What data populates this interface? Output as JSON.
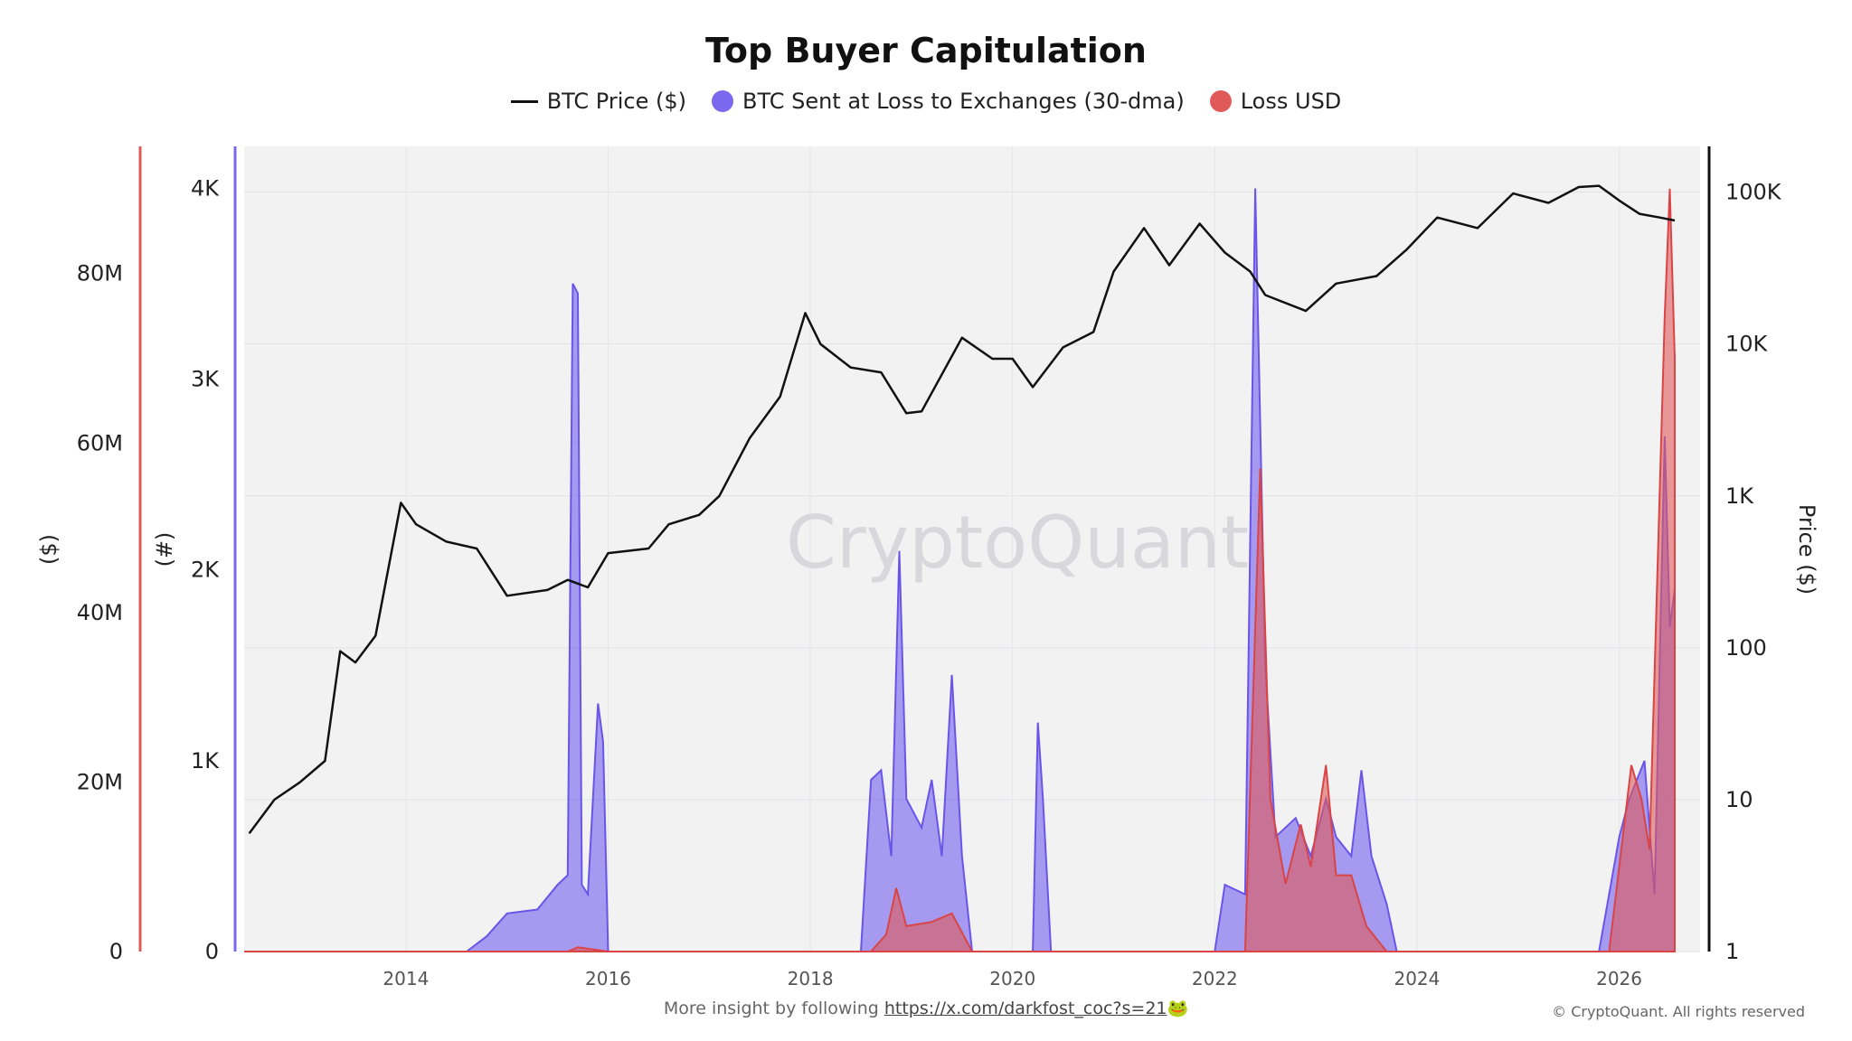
{
  "chart_data": {
    "type": "line",
    "title": "Top Buyer Capitulation",
    "watermark": "CryptoQuant",
    "legend": [
      {
        "name": "BTC Price ($)",
        "marker": "line",
        "color": "#111111"
      },
      {
        "name": "BTC Sent at Loss to Exchanges (30-dma)",
        "marker": "dot",
        "color": "#7b68ee"
      },
      {
        "name": "Loss USD",
        "marker": "dot",
        "color": "#e05a5a"
      }
    ],
    "legend_position": "top-center",
    "grid": true,
    "x_axis": {
      "ticks": [
        "2014",
        "2016",
        "2018",
        "2020",
        "2022",
        "2024",
        "2026"
      ],
      "range": [
        2012.4,
        2026.8
      ]
    },
    "y_axes": [
      {
        "id": "loss_usd",
        "side": "left-outer",
        "label": "($)",
        "color": "#e05a5a",
        "range": [
          0,
          95000000
        ],
        "ticks": [
          {
            "v": 0,
            "t": "0"
          },
          {
            "v": 20000000,
            "t": "20M"
          },
          {
            "v": 40000000,
            "t": "40M"
          },
          {
            "v": 60000000,
            "t": "60M"
          },
          {
            "v": 80000000,
            "t": "80M"
          }
        ]
      },
      {
        "id": "btc_sent",
        "side": "left-inner",
        "label": "(#)",
        "color": "#7b68ee",
        "range": [
          0,
          4220
        ],
        "ticks": [
          {
            "v": 0,
            "t": "0"
          },
          {
            "v": 1000,
            "t": "1K"
          },
          {
            "v": 2000,
            "t": "2K"
          },
          {
            "v": 3000,
            "t": "3K"
          },
          {
            "v": 4000,
            "t": "4K"
          }
        ]
      },
      {
        "id": "price",
        "side": "right",
        "label": "Price ($)",
        "color": "#111111",
        "scale": "log",
        "range": [
          1,
          200000
        ],
        "ticks": [
          {
            "v": 1,
            "t": "1"
          },
          {
            "v": 10,
            "t": "10"
          },
          {
            "v": 100,
            "t": "100"
          },
          {
            "v": 1000,
            "t": "1K"
          },
          {
            "v": 10000,
            "t": "10K"
          },
          {
            "v": 100000,
            "t": "100K"
          }
        ]
      }
    ],
    "series": [
      {
        "name": "BTC Price ($)",
        "axis": "price",
        "type": "line",
        "color": "#111111",
        "points": [
          [
            2012.45,
            6
          ],
          [
            2012.7,
            10
          ],
          [
            2012.95,
            13
          ],
          [
            2013.2,
            18
          ],
          [
            2013.35,
            95
          ],
          [
            2013.5,
            80
          ],
          [
            2013.7,
            120
          ],
          [
            2013.95,
            900
          ],
          [
            2014.1,
            650
          ],
          [
            2014.4,
            500
          ],
          [
            2014.7,
            450
          ],
          [
            2015.0,
            220
          ],
          [
            2015.4,
            240
          ],
          [
            2015.6,
            280
          ],
          [
            2015.8,
            250
          ],
          [
            2016.0,
            420
          ],
          [
            2016.4,
            450
          ],
          [
            2016.6,
            650
          ],
          [
            2016.9,
            750
          ],
          [
            2017.1,
            1000
          ],
          [
            2017.4,
            2400
          ],
          [
            2017.7,
            4500
          ],
          [
            2017.95,
            16000
          ],
          [
            2018.1,
            10000
          ],
          [
            2018.4,
            7000
          ],
          [
            2018.7,
            6500
          ],
          [
            2018.95,
            3500
          ],
          [
            2019.1,
            3600
          ],
          [
            2019.5,
            11000
          ],
          [
            2019.8,
            8000
          ],
          [
            2020.0,
            8000
          ],
          [
            2020.2,
            5200
          ],
          [
            2020.5,
            9500
          ],
          [
            2020.8,
            12000
          ],
          [
            2021.0,
            30000
          ],
          [
            2021.3,
            58000
          ],
          [
            2021.55,
            33000
          ],
          [
            2021.85,
            62000
          ],
          [
            2022.1,
            40000
          ],
          [
            2022.35,
            30000
          ],
          [
            2022.5,
            21000
          ],
          [
            2022.9,
            16500
          ],
          [
            2023.2,
            25000
          ],
          [
            2023.6,
            28000
          ],
          [
            2023.9,
            42000
          ],
          [
            2024.2,
            68000
          ],
          [
            2024.6,
            58000
          ],
          [
            2024.95,
            98000
          ],
          [
            2025.3,
            85000
          ],
          [
            2025.6,
            108000
          ],
          [
            2025.8,
            110000
          ],
          [
            2026.0,
            88000
          ],
          [
            2026.2,
            72000
          ],
          [
            2026.4,
            68000
          ],
          [
            2026.55,
            65000
          ]
        ]
      },
      {
        "name": "BTC Sent at Loss to Exchanges (30-dma)",
        "axis": "btc_sent",
        "type": "area",
        "color": "#7b68ee",
        "points": [
          [
            2012.4,
            0
          ],
          [
            2014.6,
            0
          ],
          [
            2014.8,
            80
          ],
          [
            2015.0,
            200
          ],
          [
            2015.3,
            220
          ],
          [
            2015.5,
            350
          ],
          [
            2015.6,
            400
          ],
          [
            2015.65,
            3500
          ],
          [
            2015.7,
            3450
          ],
          [
            2015.74,
            350
          ],
          [
            2015.8,
            300
          ],
          [
            2015.9,
            1300
          ],
          [
            2015.95,
            1100
          ],
          [
            2016.0,
            0
          ],
          [
            2018.5,
            0
          ],
          [
            2018.6,
            900
          ],
          [
            2018.7,
            950
          ],
          [
            2018.8,
            500
          ],
          [
            2018.88,
            2100
          ],
          [
            2018.95,
            800
          ],
          [
            2019.1,
            650
          ],
          [
            2019.2,
            900
          ],
          [
            2019.3,
            500
          ],
          [
            2019.4,
            1450
          ],
          [
            2019.5,
            500
          ],
          [
            2019.6,
            0
          ],
          [
            2020.2,
            0
          ],
          [
            2020.25,
            1200
          ],
          [
            2020.3,
            800
          ],
          [
            2020.38,
            0
          ],
          [
            2022.0,
            0
          ],
          [
            2022.1,
            350
          ],
          [
            2022.3,
            300
          ],
          [
            2022.4,
            4000
          ],
          [
            2022.5,
            1500
          ],
          [
            2022.6,
            600
          ],
          [
            2022.8,
            700
          ],
          [
            2022.95,
            500
          ],
          [
            2023.1,
            800
          ],
          [
            2023.2,
            600
          ],
          [
            2023.35,
            500
          ],
          [
            2023.45,
            950
          ],
          [
            2023.55,
            500
          ],
          [
            2023.7,
            250
          ],
          [
            2023.8,
            0
          ],
          [
            2025.8,
            0
          ],
          [
            2026.0,
            600
          ],
          [
            2026.1,
            800
          ],
          [
            2026.25,
            1000
          ],
          [
            2026.35,
            300
          ],
          [
            2026.45,
            2700
          ],
          [
            2026.5,
            1700
          ],
          [
            2026.55,
            1900
          ]
        ]
      },
      {
        "name": "Loss USD",
        "axis": "loss_usd",
        "type": "area",
        "color": "#e05a5a",
        "points": [
          [
            2012.4,
            0
          ],
          [
            2015.6,
            0
          ],
          [
            2015.7,
            500000
          ],
          [
            2016.0,
            0
          ],
          [
            2018.6,
            0
          ],
          [
            2018.75,
            2000000
          ],
          [
            2018.85,
            7500000
          ],
          [
            2018.95,
            3000000
          ],
          [
            2019.2,
            3500000
          ],
          [
            2019.4,
            4500000
          ],
          [
            2019.6,
            0
          ],
          [
            2022.3,
            0
          ],
          [
            2022.45,
            57000000
          ],
          [
            2022.55,
            18000000
          ],
          [
            2022.7,
            8000000
          ],
          [
            2022.85,
            15000000
          ],
          [
            2022.95,
            10000000
          ],
          [
            2023.1,
            22000000
          ],
          [
            2023.2,
            9000000
          ],
          [
            2023.35,
            9000000
          ],
          [
            2023.5,
            3000000
          ],
          [
            2023.7,
            0
          ],
          [
            2025.9,
            0
          ],
          [
            2026.0,
            10000000
          ],
          [
            2026.12,
            22000000
          ],
          [
            2026.22,
            18000000
          ],
          [
            2026.3,
            12000000
          ],
          [
            2026.45,
            75000000
          ],
          [
            2026.5,
            90000000
          ],
          [
            2026.55,
            70000000
          ]
        ]
      }
    ]
  },
  "footer": {
    "text": "More insight by following",
    "link": "https://x.com/darkfost_coc?s=21",
    "emoji": "🐸",
    "copyright": "© CryptoQuant. All rights reserved"
  }
}
